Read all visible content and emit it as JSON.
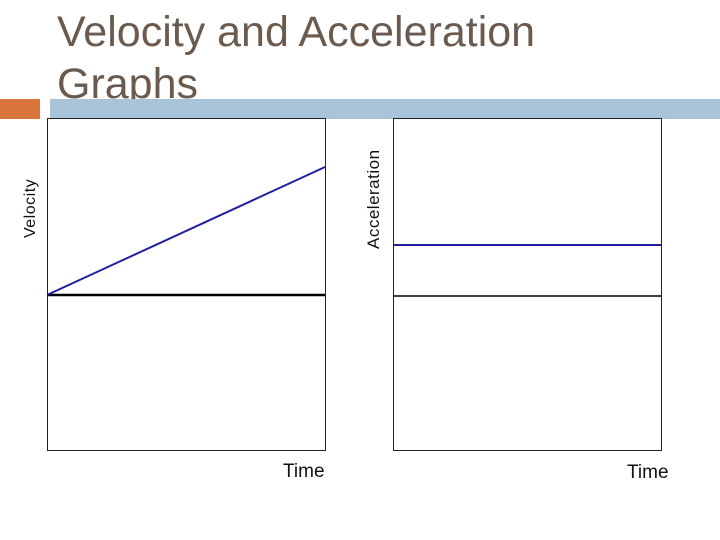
{
  "slide": {
    "title": "Velocity and Acceleration\nGraphs"
  },
  "colors": {
    "title": "#6b5a4e",
    "accent_orange": "#d9743f",
    "accent_blue": "#a9c3d9",
    "plot_line": "#1f1fa0",
    "axis_line": "#000000"
  },
  "chart_data": [
    {
      "type": "line",
      "xlabel": "Time",
      "ylabel": "Velocity",
      "series": [
        {
          "x": [
            0,
            1
          ],
          "y": [
            0,
            1
          ]
        }
      ]
    },
    {
      "type": "line",
      "xlabel": "Time",
      "ylabel": "Acceleration",
      "series": [
        {
          "x": [
            0,
            1
          ],
          "y": [
            1,
            1
          ]
        }
      ]
    }
  ]
}
